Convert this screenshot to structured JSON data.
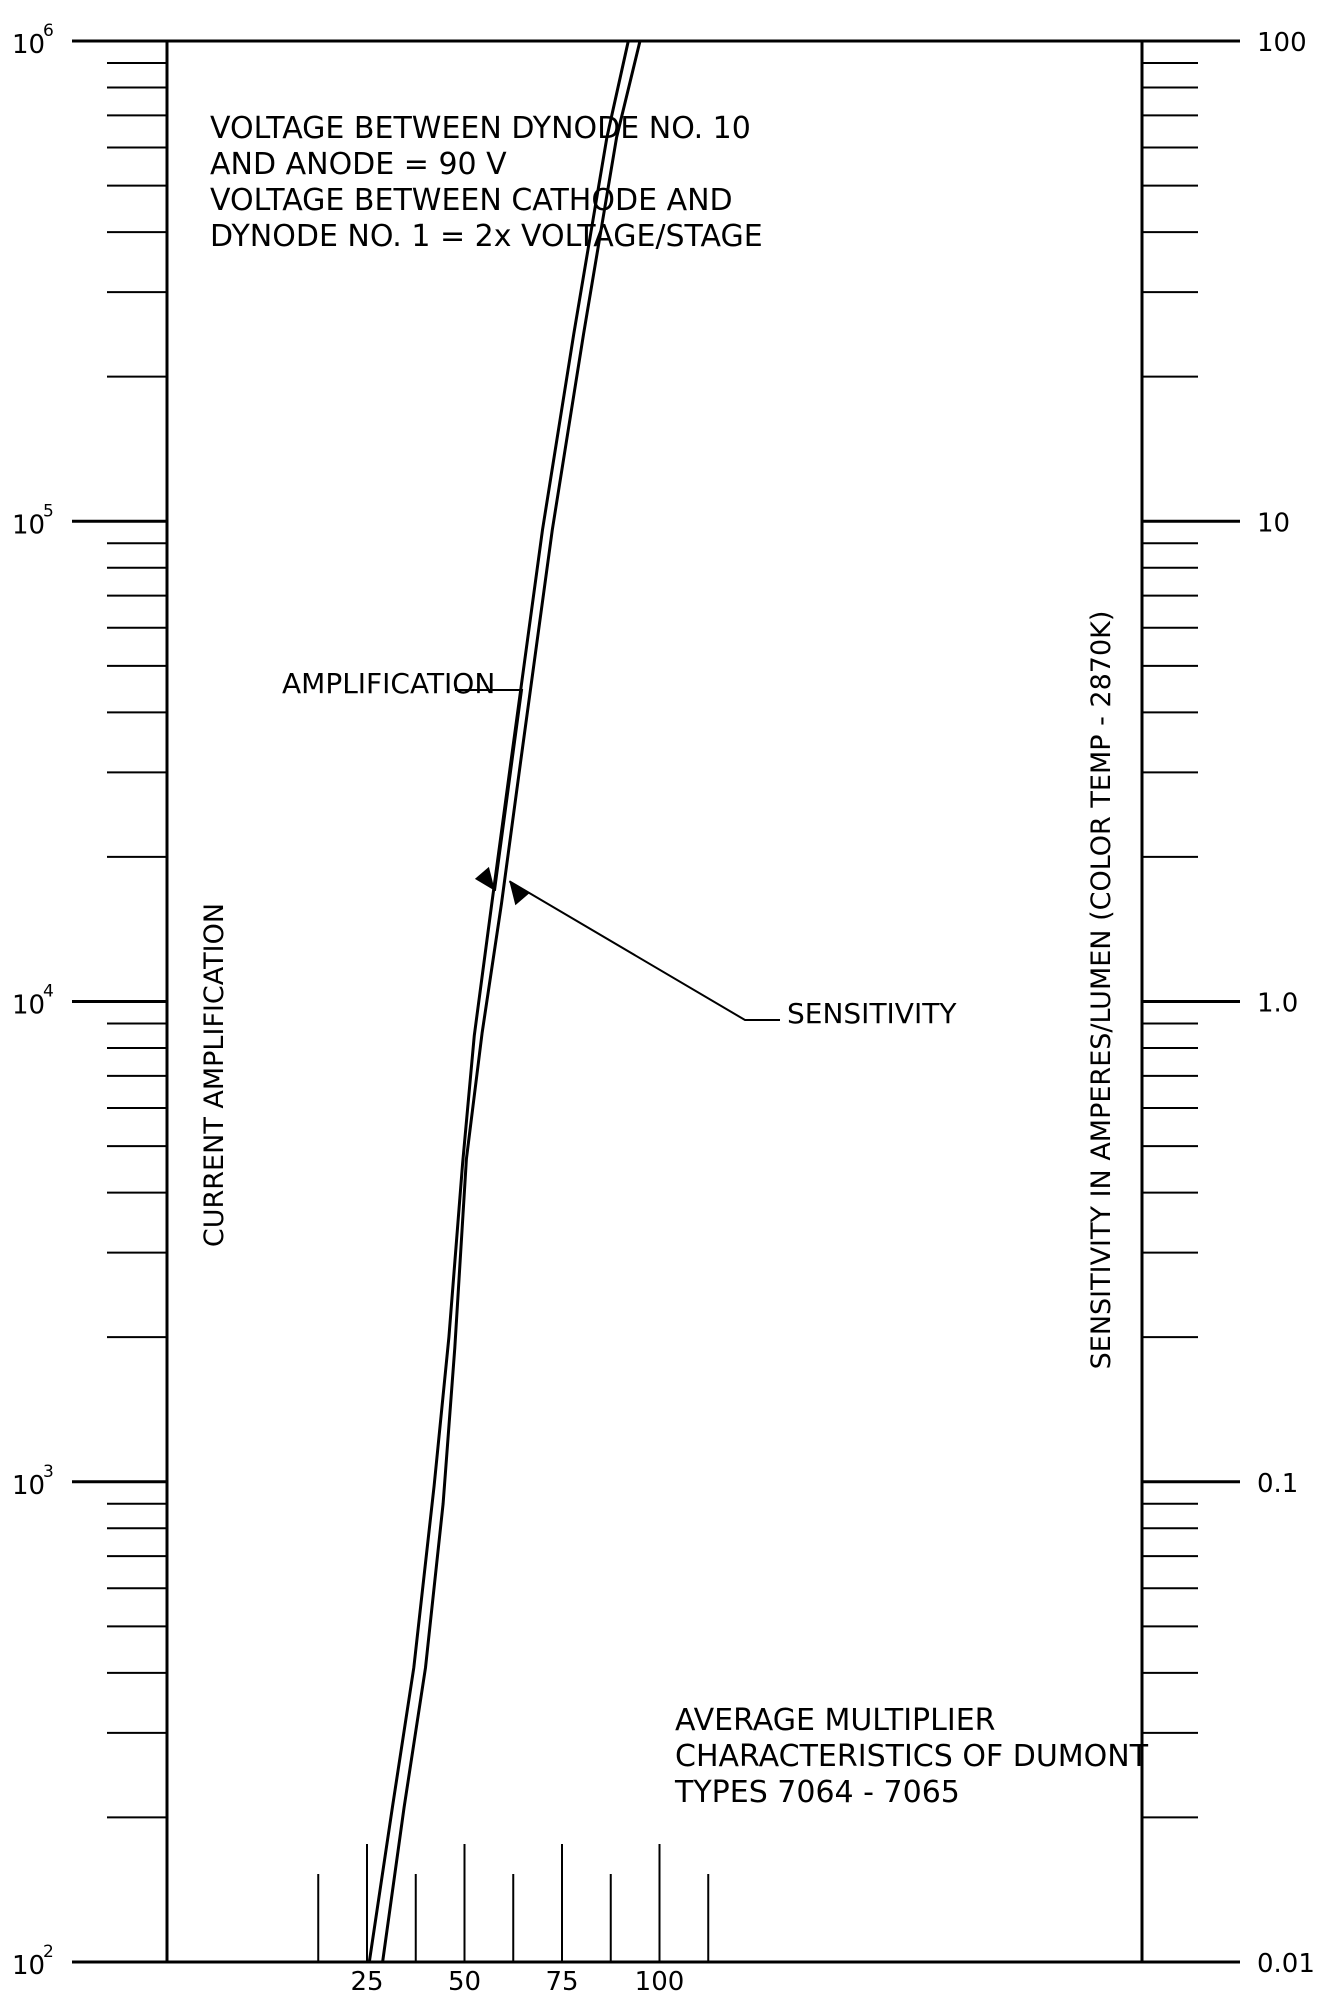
{
  "chart_data": {
    "type": "line",
    "xlabel": "",
    "x_ticks": [
      "25",
      "50",
      "75",
      "100"
    ],
    "xlim": [
      -10,
      125
    ],
    "left_axis": {
      "label": "CURRENT AMPLIFICATION",
      "scale": "log",
      "ylim": [
        100,
        1000000
      ],
      "tick_labels": [
        {
          "base": "10",
          "exp": "2",
          "value": 100
        },
        {
          "base": "10",
          "exp": "3",
          "value": 1000
        },
        {
          "base": "10",
          "exp": "4",
          "value": 10000
        },
        {
          "base": "10",
          "exp": "5",
          "value": 100000
        },
        {
          "base": "10",
          "exp": "6",
          "value": 1000000
        }
      ]
    },
    "right_axis": {
      "label": "SENSITIVITY IN AMPERES/LUMEN (COLOR TEMP - 2870K)",
      "scale": "log",
      "ylim": [
        0.01,
        100
      ],
      "tick_labels": [
        {
          "text": "0.01",
          "value": 0.01
        },
        {
          "text": "0.1",
          "value": 0.1
        },
        {
          "text": "1.0",
          "value": 1
        },
        {
          "text": "10",
          "value": 10
        },
        {
          "text": "100",
          "value": 100
        }
      ]
    },
    "series": [
      {
        "name": "AMPLIFICATION",
        "axis": "left",
        "points": [
          [
            25.6,
            100
          ],
          [
            31.5,
            210
          ],
          [
            37,
            410
          ],
          [
            42.2,
            980
          ],
          [
            46,
            2000
          ],
          [
            49.5,
            4600
          ],
          [
            52.5,
            8500
          ],
          [
            57,
            16000
          ],
          [
            62,
            32000
          ],
          [
            70,
            96000
          ],
          [
            78,
            245000
          ],
          [
            86.5,
            630000
          ],
          [
            92,
            1000000
          ]
        ]
      },
      {
        "name": "SENSITIVITY",
        "axis": "right",
        "points": [
          [
            29,
            0.01
          ],
          [
            34.5,
            0.021
          ],
          [
            40,
            0.041
          ],
          [
            44.5,
            0.09
          ],
          [
            47.5,
            0.19
          ],
          [
            50.5,
            0.47
          ],
          [
            54.5,
            0.86
          ],
          [
            59.5,
            1.6
          ],
          [
            64.5,
            3.2
          ],
          [
            72.5,
            9.6
          ],
          [
            80.5,
            24.5
          ],
          [
            89,
            63
          ],
          [
            95,
            100
          ]
        ]
      }
    ],
    "annotations": {
      "conditions": [
        "VOLTAGE BETWEEN DYNODE NO. 10",
        "AND ANODE = 90 V",
        "VOLTAGE BETWEEN CATHODE AND",
        "DYNODE NO. 1 = 2x VOLTAGE/STAGE"
      ],
      "title": [
        "AVERAGE MULTIPLIER",
        "CHARACTERISTICS OF DUMONT",
        "TYPES 7064 - 7065"
      ],
      "amplification_label": "AMPLIFICATION",
      "sensitivity_label": "SENSITIVITY"
    },
    "grid": false,
    "legend": "none"
  }
}
